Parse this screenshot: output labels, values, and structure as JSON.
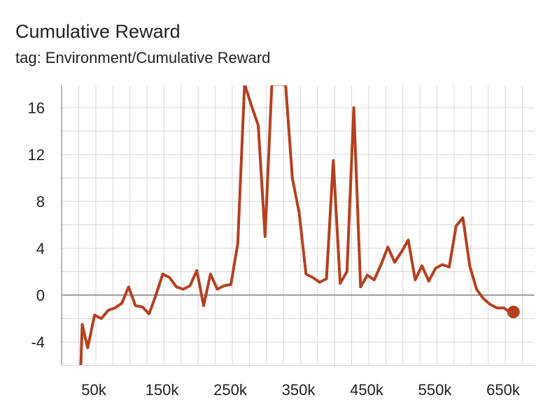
{
  "header": {
    "title": "Cumulative Reward",
    "subtitle": "tag: Environment/Cumulative Reward"
  },
  "colors": {
    "series": "#b5401f",
    "grid": "#d6d6d6",
    "zero_line": "#9e9e9e"
  },
  "chart_data": {
    "type": "line",
    "title": "Cumulative Reward",
    "subtitle": "tag: Environment/Cumulative Reward",
    "xlabel": "",
    "ylabel": "",
    "xlim": [
      0,
      700000
    ],
    "ylim": [
      -6,
      18
    ],
    "x_ticks": [
      50000,
      150000,
      250000,
      350000,
      450000,
      550000,
      650000
    ],
    "x_tick_labels": [
      "50k",
      "150k",
      "250k",
      "350k",
      "450k",
      "550k",
      "650k"
    ],
    "y_ticks": [
      -4,
      0,
      4,
      8,
      12,
      16
    ],
    "y_tick_labels": [
      "-4",
      "0",
      "4",
      "8",
      "12",
      "16"
    ],
    "grid": true,
    "series": [
      {
        "name": "",
        "marker_on_last_point": true,
        "points": [
          [
            28000,
            -6
          ],
          [
            30000,
            -2.5
          ],
          [
            38000,
            -4.5
          ],
          [
            48000,
            -1.7
          ],
          [
            58000,
            -2
          ],
          [
            68000,
            -1.3
          ],
          [
            78000,
            -1.1
          ],
          [
            88000,
            -0.7
          ],
          [
            98000,
            0.7
          ],
          [
            108000,
            -0.9
          ],
          [
            118000,
            -1
          ],
          [
            128000,
            -1.6
          ],
          [
            138000,
            0
          ],
          [
            148000,
            1.8
          ],
          [
            158000,
            1.5
          ],
          [
            168000,
            0.7
          ],
          [
            178000,
            0.5
          ],
          [
            188000,
            0.8
          ],
          [
            198000,
            2.1
          ],
          [
            208000,
            -0.9
          ],
          [
            218000,
            1.8
          ],
          [
            228000,
            0.5
          ],
          [
            238000,
            0.8
          ],
          [
            248000,
            0.9
          ],
          [
            258000,
            4.4
          ],
          [
            268000,
            18
          ],
          [
            278000,
            16.2
          ],
          [
            288000,
            14.5
          ],
          [
            298000,
            5
          ],
          [
            308000,
            18
          ],
          [
            328000,
            18
          ],
          [
            338000,
            10
          ],
          [
            348000,
            7
          ],
          [
            358000,
            1.8
          ],
          [
            368000,
            1.5
          ],
          [
            378000,
            1.1
          ],
          [
            388000,
            1.4
          ],
          [
            398000,
            11.5
          ],
          [
            408000,
            1
          ],
          [
            418000,
            2
          ],
          [
            428000,
            16
          ],
          [
            438000,
            0.7
          ],
          [
            448000,
            1.7
          ],
          [
            458000,
            1.3
          ],
          [
            468000,
            2.6
          ],
          [
            478000,
            4.1
          ],
          [
            488000,
            2.8
          ],
          [
            498000,
            3.7
          ],
          [
            508000,
            4.7
          ],
          [
            518000,
            1.3
          ],
          [
            528000,
            2.5
          ],
          [
            538000,
            1.2
          ],
          [
            548000,
            2.3
          ],
          [
            558000,
            2.6
          ],
          [
            568000,
            2.4
          ],
          [
            578000,
            5.9
          ],
          [
            588000,
            6.6
          ],
          [
            598000,
            2.5
          ],
          [
            608000,
            0.5
          ],
          [
            618000,
            -0.3
          ],
          [
            628000,
            -0.8
          ],
          [
            638000,
            -1.1
          ],
          [
            648000,
            -1.1
          ],
          [
            658000,
            -1.5
          ]
        ]
      }
    ]
  }
}
